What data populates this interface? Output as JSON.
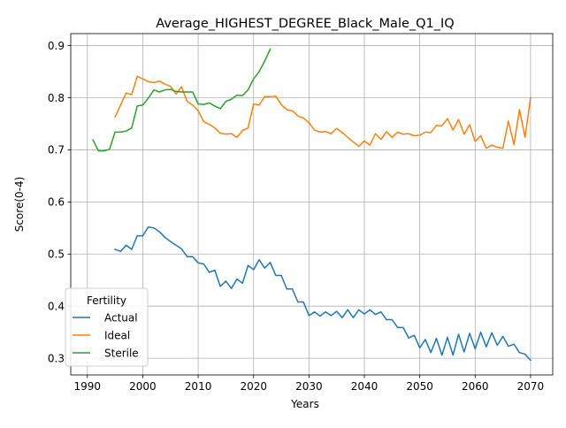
{
  "chart_data": {
    "type": "line",
    "title": "Average_HIGHEST_DEGREE_Black_Male_Q1_IQ",
    "xlabel": "Years",
    "ylabel": "Score(0-4)",
    "xlim": [
      1987,
      2074
    ],
    "ylim": [
      0.268,
      0.923
    ],
    "xticks": [
      1990,
      2000,
      2010,
      2020,
      2030,
      2040,
      2050,
      2060,
      2070
    ],
    "yticks": [
      0.3,
      0.4,
      0.5,
      0.6,
      0.7,
      0.8,
      0.9
    ],
    "grid": true,
    "legend": {
      "title": "Fertility",
      "position": "lower-left"
    },
    "series": [
      {
        "name": "Actual",
        "color": "#1f77b4",
        "x": [
          1995,
          1996,
          1997,
          1998,
          1999,
          2000,
          2001,
          2002,
          2003,
          2004,
          2005,
          2006,
          2007,
          2008,
          2009,
          2010,
          2011,
          2012,
          2013,
          2014,
          2015,
          2016,
          2017,
          2018,
          2019,
          2020,
          2021,
          2022,
          2023,
          2024,
          2025,
          2026,
          2027,
          2028,
          2029,
          2030,
          2031,
          2032,
          2033,
          2034,
          2035,
          2036,
          2037,
          2038,
          2039,
          2040,
          2041,
          2042,
          2043,
          2044,
          2045,
          2046,
          2047,
          2048,
          2049,
          2050,
          2051,
          2052,
          2053,
          2054,
          2055,
          2056,
          2057,
          2058,
          2059,
          2060,
          2061,
          2062,
          2063,
          2064,
          2065,
          2066,
          2067,
          2068,
          2069,
          2070
        ],
        "values": [
          0.509,
          0.505,
          0.517,
          0.509,
          0.535,
          0.535,
          0.552,
          0.55,
          0.543,
          0.532,
          0.524,
          0.517,
          0.51,
          0.495,
          0.495,
          0.483,
          0.481,
          0.465,
          0.469,
          0.438,
          0.448,
          0.434,
          0.452,
          0.444,
          0.478,
          0.47,
          0.489,
          0.473,
          0.484,
          0.459,
          0.459,
          0.433,
          0.433,
          0.408,
          0.408,
          0.382,
          0.389,
          0.381,
          0.389,
          0.382,
          0.39,
          0.378,
          0.393,
          0.378,
          0.393,
          0.385,
          0.393,
          0.384,
          0.389,
          0.374,
          0.374,
          0.359,
          0.359,
          0.339,
          0.344,
          0.32,
          0.336,
          0.311,
          0.338,
          0.306,
          0.34,
          0.306,
          0.346,
          0.312,
          0.348,
          0.318,
          0.35,
          0.322,
          0.349,
          0.325,
          0.342,
          0.323,
          0.327,
          0.311,
          0.308,
          0.296
        ]
      },
      {
        "name": "Ideal",
        "color": "#ff7f0e",
        "x": [
          1995,
          1996,
          1997,
          1998,
          1999,
          2000,
          2001,
          2002,
          2003,
          2004,
          2005,
          2006,
          2007,
          2008,
          2009,
          2010,
          2011,
          2012,
          2013,
          2014,
          2015,
          2016,
          2017,
          2018,
          2019,
          2020,
          2021,
          2022,
          2023,
          2024,
          2025,
          2026,
          2027,
          2028,
          2029,
          2030,
          2031,
          2032,
          2033,
          2034,
          2035,
          2036,
          2037,
          2038,
          2039,
          2040,
          2041,
          2042,
          2043,
          2044,
          2045,
          2046,
          2047,
          2048,
          2049,
          2050,
          2051,
          2052,
          2053,
          2054,
          2055,
          2056,
          2057,
          2058,
          2059,
          2060,
          2061,
          2062,
          2063,
          2064,
          2065,
          2066,
          2067,
          2068,
          2069,
          2070
        ],
        "values": [
          0.763,
          0.786,
          0.809,
          0.806,
          0.841,
          0.836,
          0.831,
          0.829,
          0.832,
          0.826,
          0.822,
          0.807,
          0.821,
          0.793,
          0.786,
          0.775,
          0.754,
          0.749,
          0.742,
          0.732,
          0.73,
          0.731,
          0.724,
          0.737,
          0.742,
          0.788,
          0.786,
          0.802,
          0.802,
          0.803,
          0.787,
          0.777,
          0.775,
          0.765,
          0.761,
          0.752,
          0.738,
          0.734,
          0.735,
          0.731,
          0.741,
          0.733,
          0.724,
          0.715,
          0.707,
          0.717,
          0.709,
          0.731,
          0.72,
          0.735,
          0.724,
          0.734,
          0.73,
          0.731,
          0.727,
          0.728,
          0.734,
          0.733,
          0.747,
          0.746,
          0.76,
          0.738,
          0.758,
          0.73,
          0.748,
          0.716,
          0.727,
          0.703,
          0.709,
          0.705,
          0.703,
          0.755,
          0.71,
          0.777,
          0.724,
          0.8
        ]
      },
      {
        "name": "Sterile",
        "color": "#2ca02c",
        "x": [
          1991,
          1992,
          1993,
          1994,
          1995,
          1996,
          1997,
          1998,
          1999,
          2000,
          2001,
          2002,
          2003,
          2004,
          2005,
          2006,
          2007,
          2008,
          2009,
          2010,
          2011,
          2012,
          2013,
          2014,
          2015,
          2016,
          2017,
          2018,
          2019,
          2020,
          2021,
          2022,
          2023
        ],
        "values": [
          0.719,
          0.698,
          0.698,
          0.701,
          0.734,
          0.734,
          0.736,
          0.742,
          0.784,
          0.786,
          0.799,
          0.815,
          0.811,
          0.815,
          0.816,
          0.812,
          0.811,
          0.811,
          0.811,
          0.788,
          0.787,
          0.79,
          0.784,
          0.779,
          0.793,
          0.797,
          0.805,
          0.804,
          0.815,
          0.836,
          0.85,
          0.87,
          0.893
        ]
      }
    ]
  }
}
